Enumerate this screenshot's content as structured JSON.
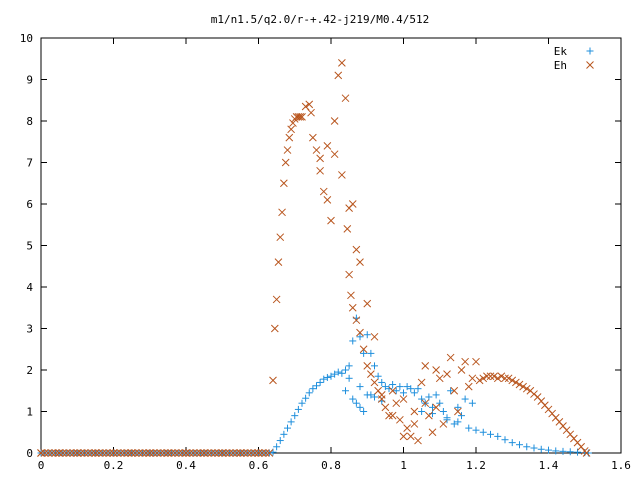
{
  "chart_data": {
    "type": "scatter",
    "title": "m1/n1.5/q2.0/r-+.42-j219/M0.4/512",
    "xlabel": "",
    "ylabel": "",
    "xlim": [
      0,
      1.6
    ],
    "ylim": [
      0,
      10
    ],
    "x_ticks": [
      "0",
      "0.2",
      "0.4",
      "0.6",
      "0.8",
      "1",
      "1.2",
      "1.4",
      "1.6"
    ],
    "y_ticks": [
      "0",
      "1",
      "2",
      "3",
      "4",
      "5",
      "6",
      "7",
      "8",
      "9",
      "10"
    ],
    "grid": false,
    "legend": "top-right",
    "series": [
      {
        "name": "Ek",
        "marker": "plus",
        "color": "#1f8fdc",
        "x": [
          0.0,
          0.05,
          0.1,
          0.15,
          0.2,
          0.25,
          0.3,
          0.35,
          0.4,
          0.45,
          0.5,
          0.55,
          0.6,
          0.63,
          0.64,
          0.65,
          0.66,
          0.67,
          0.68,
          0.69,
          0.7,
          0.71,
          0.72,
          0.73,
          0.74,
          0.75,
          0.76,
          0.77,
          0.78,
          0.79,
          0.8,
          0.81,
          0.82,
          0.83,
          0.84,
          0.85,
          0.86,
          0.87,
          0.88,
          0.89,
          0.9,
          0.91,
          0.92,
          0.93,
          0.94,
          0.95,
          0.96,
          0.97,
          0.98,
          0.99,
          1.0,
          1.01,
          1.02,
          1.03,
          1.04,
          1.05,
          1.06,
          1.07,
          1.08,
          1.09,
          1.1,
          1.11,
          1.12,
          1.13,
          1.14,
          1.15,
          1.16,
          1.17,
          1.18,
          1.19,
          1.2,
          1.22,
          1.24,
          1.26,
          1.28,
          1.3,
          1.32,
          1.34,
          1.36,
          1.38,
          1.4,
          1.42,
          1.44,
          1.46,
          1.48,
          1.5,
          1.51,
          0.84,
          0.86,
          0.87,
          0.88,
          0.89,
          0.9,
          0.92,
          0.85,
          0.88,
          0.91,
          0.94,
          1.05,
          1.08,
          1.12,
          1.15
        ],
        "y": [
          0,
          0,
          0,
          0,
          0,
          0,
          0,
          0,
          0,
          0,
          0,
          0,
          0,
          0,
          0.02,
          0.15,
          0.3,
          0.45,
          0.6,
          0.75,
          0.9,
          1.05,
          1.2,
          1.32,
          1.45,
          1.55,
          1.62,
          1.7,
          1.78,
          1.82,
          1.85,
          1.9,
          1.95,
          1.92,
          2.0,
          2.1,
          2.7,
          3.25,
          2.8,
          2.4,
          2.85,
          2.4,
          2.1,
          1.85,
          1.7,
          1.6,
          1.55,
          1.65,
          1.5,
          1.6,
          1.45,
          1.6,
          1.55,
          1.45,
          1.55,
          1.3,
          1.2,
          1.35,
          1.1,
          1.4,
          1.2,
          1.0,
          0.8,
          1.5,
          0.7,
          1.1,
          0.9,
          1.3,
          0.6,
          1.2,
          0.55,
          0.5,
          0.45,
          0.4,
          0.32,
          0.25,
          0.2,
          0.15,
          0.12,
          0.09,
          0.07,
          0.05,
          0.04,
          0.03,
          0.02,
          0.01,
          0.0,
          1.5,
          1.3,
          1.2,
          1.6,
          1.0,
          1.4,
          1.35,
          1.8,
          1.1,
          1.4,
          1.25,
          1.0,
          0.95,
          0.85,
          0.75
        ]
      },
      {
        "name": "Eh",
        "marker": "cross",
        "color": "#b8541c",
        "x": [
          0.0,
          0.05,
          0.1,
          0.15,
          0.2,
          0.25,
          0.3,
          0.35,
          0.4,
          0.45,
          0.5,
          0.55,
          0.6,
          0.63,
          0.64,
          0.645,
          0.65,
          0.655,
          0.66,
          0.665,
          0.67,
          0.675,
          0.68,
          0.685,
          0.69,
          0.695,
          0.7,
          0.705,
          0.71,
          0.715,
          0.72,
          0.73,
          0.74,
          0.745,
          0.75,
          0.76,
          0.77,
          0.78,
          0.79,
          0.8,
          0.81,
          0.82,
          0.83,
          0.84,
          0.845,
          0.85,
          0.855,
          0.86,
          0.87,
          0.88,
          0.89,
          0.9,
          0.91,
          0.92,
          0.93,
          0.94,
          0.95,
          0.96,
          0.97,
          0.98,
          0.99,
          1.0,
          1.01,
          1.02,
          1.03,
          1.04,
          1.05,
          1.06,
          1.07,
          1.08,
          1.09,
          1.1,
          1.11,
          1.12,
          1.13,
          1.14,
          1.15,
          1.16,
          1.17,
          1.18,
          1.19,
          1.2,
          1.21,
          1.22,
          1.23,
          1.24,
          1.25,
          1.26,
          1.27,
          1.28,
          1.29,
          1.3,
          1.31,
          1.32,
          1.33,
          1.34,
          1.35,
          1.36,
          1.37,
          1.38,
          1.39,
          1.4,
          1.41,
          1.42,
          1.43,
          1.44,
          1.45,
          1.46,
          1.47,
          1.48,
          1.49,
          1.5,
          1.505,
          0.77,
          0.79,
          0.81,
          0.83,
          0.85,
          0.86,
          0.87,
          0.88,
          0.9,
          0.92,
          0.94,
          0.97,
          1.0,
          1.03,
          1.06,
          1.09
        ],
        "y": [
          0,
          0,
          0,
          0,
          0,
          0,
          0,
          0,
          0,
          0,
          0,
          0,
          0,
          0,
          1.75,
          3.0,
          3.7,
          4.6,
          5.2,
          5.8,
          6.5,
          7.0,
          7.3,
          7.6,
          7.8,
          7.95,
          8.05,
          8.1,
          8.1,
          8.1,
          8.1,
          8.35,
          8.4,
          8.2,
          7.6,
          7.3,
          6.8,
          6.3,
          6.1,
          5.6,
          8.0,
          9.1,
          9.4,
          8.55,
          5.4,
          4.3,
          3.8,
          3.5,
          3.2,
          2.9,
          2.5,
          2.1,
          1.9,
          1.7,
          1.5,
          1.3,
          1.1,
          0.9,
          1.5,
          1.2,
          0.8,
          1.3,
          0.6,
          0.4,
          1.0,
          0.3,
          1.7,
          2.1,
          0.9,
          0.5,
          1.1,
          1.8,
          0.7,
          1.9,
          2.3,
          1.5,
          1.0,
          2.0,
          2.2,
          1.6,
          1.8,
          2.2,
          1.75,
          1.8,
          1.85,
          1.85,
          1.85,
          1.8,
          1.85,
          1.8,
          1.8,
          1.75,
          1.7,
          1.65,
          1.6,
          1.55,
          1.5,
          1.42,
          1.35,
          1.25,
          1.15,
          1.05,
          0.95,
          0.85,
          0.75,
          0.65,
          0.55,
          0.45,
          0.35,
          0.25,
          0.15,
          0.05,
          0.0,
          7.1,
          7.4,
          7.2,
          6.7,
          5.9,
          6.0,
          4.9,
          4.6,
          3.6,
          2.8,
          1.4,
          0.9,
          0.4,
          0.7,
          1.2,
          2.0
        ]
      }
    ]
  }
}
